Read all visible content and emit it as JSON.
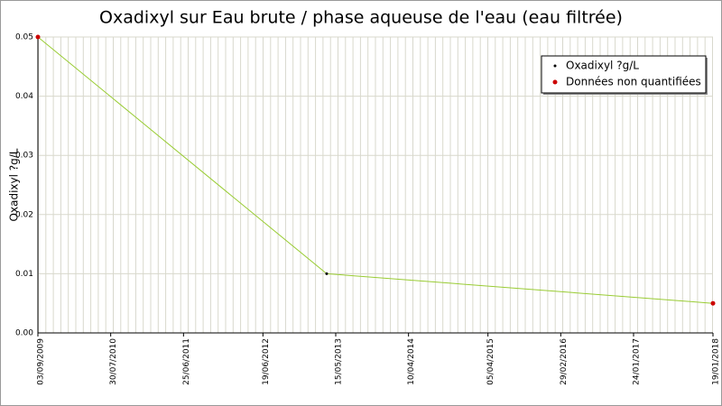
{
  "chart_data": {
    "type": "line",
    "title": "Oxadixyl sur Eau brute / phase aqueuse de l'eau (eau filtrée)",
    "y_label": "Oxadixyl ?g/L",
    "x": [
      "03/09/2009",
      "04/04/2013",
      "19/01/2018"
    ],
    "series": [
      {
        "name": "Oxadixyl ?g/L",
        "color": "#99cc33",
        "marker_color": "#000000",
        "line": true,
        "values": [
          0.05,
          0.01,
          0.005
        ]
      },
      {
        "name": "Données non quantifiées",
        "color": "#cc0000",
        "marker_color": "#cc0000",
        "line": false,
        "values": [
          0.05,
          null,
          0.005
        ]
      }
    ],
    "xlim": [
      "03/09/2009",
      "19/01/2018"
    ],
    "xticks": [
      "03/09/2009",
      "30/07/2010",
      "25/06/2011",
      "19/06/2012",
      "15/05/2013",
      "10/04/2014",
      "05/04/2015",
      "29/02/2016",
      "24/01/2017",
      "19/01/2018"
    ],
    "ylim": [
      0,
      0.05
    ],
    "yticks": [
      {
        "value": 0,
        "label": "0.00"
      },
      0.01,
      0.02,
      0.03,
      0.04,
      0.05
    ],
    "grid": true,
    "legend": "top-right"
  }
}
